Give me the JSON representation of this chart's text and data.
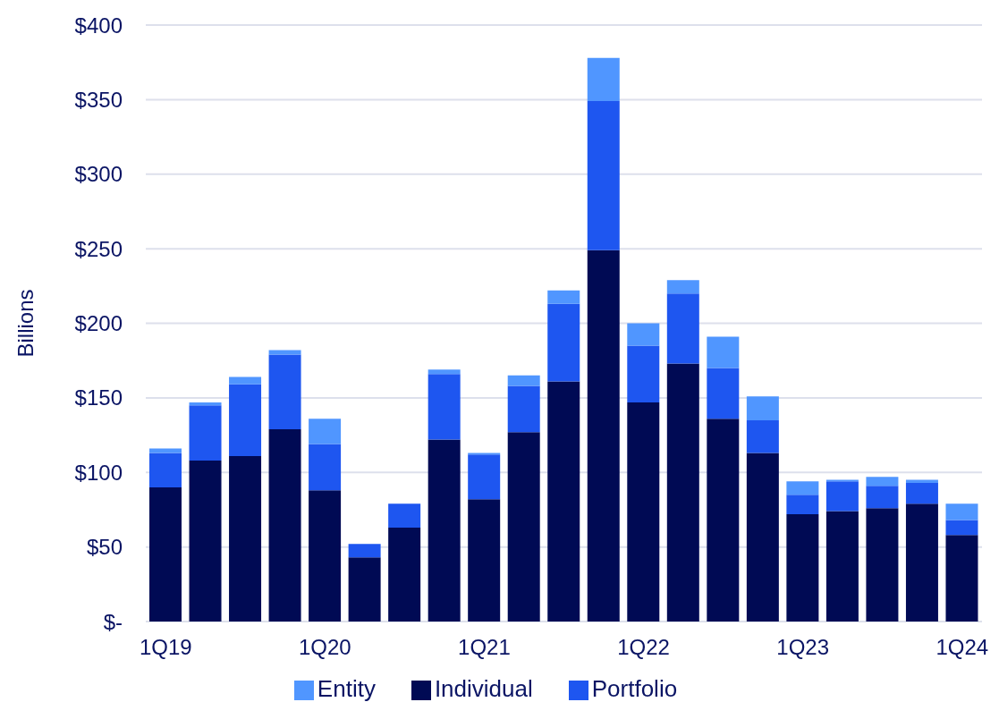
{
  "chart_data": {
    "type": "bar",
    "stacked": true,
    "ylabel": "Billions",
    "categories": [
      "1Q19",
      null,
      null,
      null,
      "1Q20",
      null,
      null,
      null,
      "1Q21",
      null,
      null,
      null,
      "1Q22",
      null,
      null,
      null,
      "1Q23",
      null,
      null,
      null,
      "1Q24"
    ],
    "series": [
      {
        "name": "Individual",
        "color": "#000a54",
        "values": [
          90,
          108,
          111,
          129,
          88,
          43,
          63,
          122,
          82,
          127,
          161,
          249,
          147,
          173,
          136,
          113,
          72,
          74,
          76,
          79,
          58
        ]
      },
      {
        "name": "Portfolio",
        "color": "#1e56f0",
        "values": [
          23,
          37,
          48,
          50,
          31,
          9,
          16,
          44,
          30,
          31,
          52,
          100,
          38,
          47,
          34,
          22,
          13,
          20,
          15,
          14,
          10
        ]
      },
      {
        "name": "Entity",
        "color": "#5096ff",
        "values": [
          3,
          2,
          5,
          3,
          17,
          0,
          0,
          3,
          1,
          7,
          9,
          29,
          15,
          9,
          21,
          16,
          9,
          1,
          6,
          2,
          11
        ]
      }
    ],
    "ylim": [
      0,
      400
    ],
    "yticks": [
      {
        "value": 0,
        "label": "$-"
      },
      {
        "value": 50,
        "label": "$50"
      },
      {
        "value": 100,
        "label": "$100"
      },
      {
        "value": 150,
        "label": "$150"
      },
      {
        "value": 200,
        "label": "$200"
      },
      {
        "value": 250,
        "label": "$250"
      },
      {
        "value": 300,
        "label": "$300"
      },
      {
        "value": 350,
        "label": "$350"
      },
      {
        "value": 400,
        "label": "$400"
      }
    ],
    "grid": "y",
    "legend": "bottom"
  }
}
